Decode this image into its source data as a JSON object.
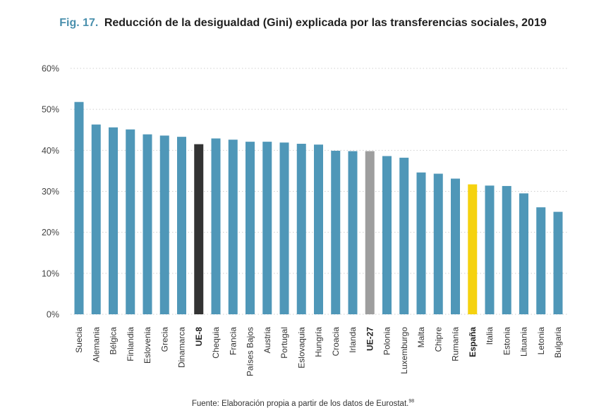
{
  "title": {
    "prefix": "Fig. 17.",
    "text": "Reducción de la desigualdad (Gini) explicada por las transferencias sociales, 2019"
  },
  "source": {
    "text": "Fuente: Elaboración propia a partir de los datos de Eurostat.",
    "note": "98"
  },
  "colors": {
    "default": "#4f97b8",
    "ue8": "#333333",
    "ue27": "#9e9e9e",
    "espana": "#f5d20f",
    "grid": "#cfcfcf"
  },
  "chart_data": {
    "type": "bar",
    "title": "Reducción de la desigualdad (Gini) explicada por las transferencias sociales, 2019",
    "xlabel": "",
    "ylabel": "",
    "ylim": [
      0,
      60
    ],
    "yticks": [
      "0%",
      "10%",
      "20%",
      "30%",
      "40%",
      "50%",
      "60%"
    ],
    "grid": true,
    "categories": [
      "Suecia",
      "Alemania",
      "Bélgica",
      "Finlandia",
      "Eslovenia",
      "Grecia",
      "Dinamarca",
      "UE-8",
      "Chequia",
      "Francia",
      "Países Bajos",
      "Austria",
      "Portugal",
      "Eslovaquia",
      "Hungría",
      "Croacia",
      "Irlanda",
      "UE-27",
      "Polonia",
      "Luxemburgo",
      "Malta",
      "Chipre",
      "Rumanía",
      "España",
      "Italia",
      "Estonia",
      "Lituania",
      "Letonia",
      "Bulgaria"
    ],
    "values": [
      51.8,
      46.3,
      45.6,
      45.1,
      43.9,
      43.6,
      43.3,
      41.5,
      42.9,
      42.6,
      42.1,
      42.1,
      41.9,
      41.6,
      41.4,
      39.9,
      39.8,
      39.8,
      38.6,
      38.2,
      34.6,
      34.3,
      33.1,
      31.7,
      31.4,
      31.3,
      29.5,
      26.1,
      25.0
    ],
    "highlight": {
      "UE-8": "ue8",
      "UE-27": "ue27",
      "España": "espana"
    },
    "bold_labels": [
      "UE-8",
      "UE-27",
      "España"
    ]
  }
}
